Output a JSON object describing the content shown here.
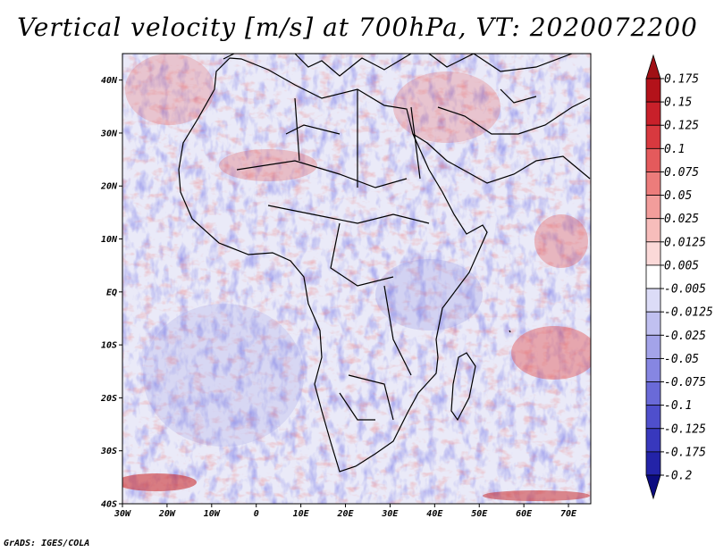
{
  "title": "Vertical velocity [m/s] at 700hPa, VT: 2020072200",
  "footer": "GrADS: IGES/COLA",
  "map": {
    "lon_range": [
      -30,
      75
    ],
    "lat_range": [
      -40,
      45
    ],
    "lat_ticks": [
      {
        "value": 40,
        "label": "40N"
      },
      {
        "value": 30,
        "label": "30N"
      },
      {
        "value": 20,
        "label": "20N"
      },
      {
        "value": 10,
        "label": "10N"
      },
      {
        "value": 0,
        "label": "EQ"
      },
      {
        "value": -10,
        "label": "10S"
      },
      {
        "value": -20,
        "label": "20S"
      },
      {
        "value": -30,
        "label": "30S"
      },
      {
        "value": -40,
        "label": "40S"
      }
    ],
    "lon_ticks": [
      {
        "value": -30,
        "label": "30W"
      },
      {
        "value": -20,
        "label": "20W"
      },
      {
        "value": -10,
        "label": "10W"
      },
      {
        "value": 0,
        "label": "0"
      },
      {
        "value": 10,
        "label": "10E"
      },
      {
        "value": 20,
        "label": "20E"
      },
      {
        "value": 30,
        "label": "30E"
      },
      {
        "value": 40,
        "label": "40E"
      },
      {
        "value": 50,
        "label": "50E"
      },
      {
        "value": 60,
        "label": "60E"
      },
      {
        "value": 70,
        "label": "70E"
      }
    ]
  },
  "colorbar": {
    "levels": [
      {
        "label": "0.175",
        "color": "#b3121a"
      },
      {
        "label": "0.15",
        "color": "#c8202a"
      },
      {
        "label": "0.125",
        "color": "#d8393f"
      },
      {
        "label": "0.1",
        "color": "#e45a5c"
      },
      {
        "label": "0.075",
        "color": "#ec7c7b"
      },
      {
        "label": "0.05",
        "color": "#f29d9b"
      },
      {
        "label": "0.025",
        "color": "#f7bdbb"
      },
      {
        "label": "0.0125",
        "color": "#fbd9d8"
      },
      {
        "label": "0.005",
        "color": "#ffffff"
      },
      {
        "label": "-0.005",
        "color": "#dcdcf7"
      },
      {
        "label": "-0.0125",
        "color": "#c0c0f0"
      },
      {
        "label": "-0.025",
        "color": "#a3a3e9"
      },
      {
        "label": "-0.05",
        "color": "#8686e2"
      },
      {
        "label": "-0.075",
        "color": "#6a6ad8"
      },
      {
        "label": "-0.1",
        "color": "#4f4fcc"
      },
      {
        "label": "-0.125",
        "color": "#3838bd"
      },
      {
        "label": "-0.175",
        "color": "#2323a8"
      },
      {
        "label": "-0.2",
        "color": "#131390"
      }
    ],
    "top_color": "#a01015",
    "bottom_color": "#0c0c80"
  }
}
